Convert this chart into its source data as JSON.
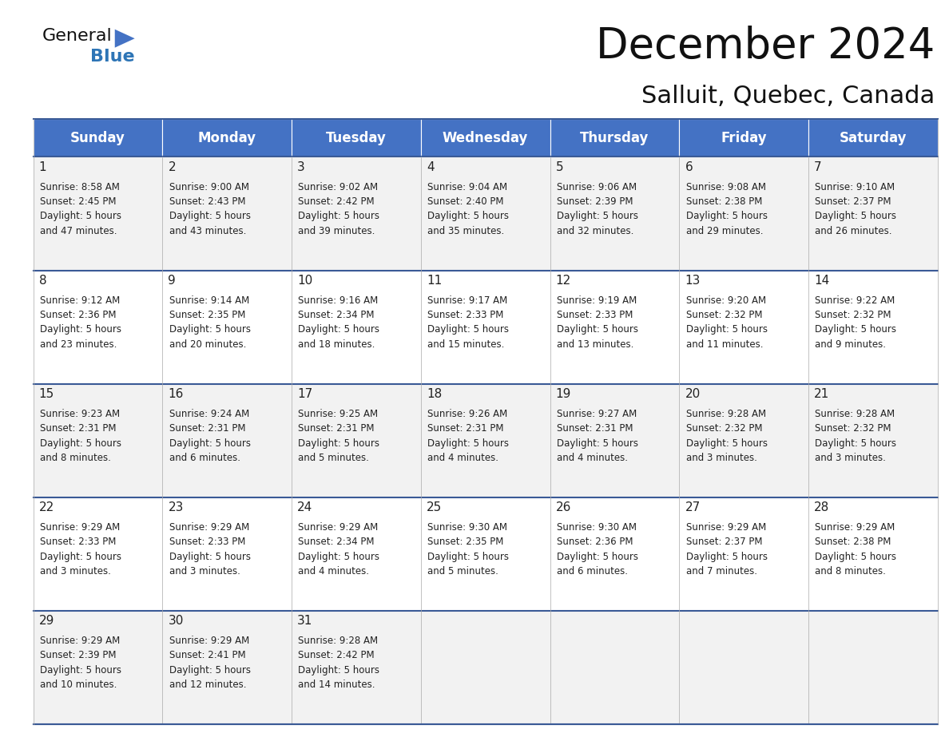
{
  "title": "December 2024",
  "subtitle": "Salluit, Quebec, Canada",
  "header_color": "#4472C4",
  "header_text_color": "#FFFFFF",
  "days_of_week": [
    "Sunday",
    "Monday",
    "Tuesday",
    "Wednesday",
    "Thursday",
    "Friday",
    "Saturday"
  ],
  "weeks": [
    [
      {
        "day": 1,
        "sunrise": "8:58 AM",
        "sunset": "2:45 PM",
        "daylight": "5 hours and 47 minutes."
      },
      {
        "day": 2,
        "sunrise": "9:00 AM",
        "sunset": "2:43 PM",
        "daylight": "5 hours and 43 minutes."
      },
      {
        "day": 3,
        "sunrise": "9:02 AM",
        "sunset": "2:42 PM",
        "daylight": "5 hours and 39 minutes."
      },
      {
        "day": 4,
        "sunrise": "9:04 AM",
        "sunset": "2:40 PM",
        "daylight": "5 hours and 35 minutes."
      },
      {
        "day": 5,
        "sunrise": "9:06 AM",
        "sunset": "2:39 PM",
        "daylight": "5 hours and 32 minutes."
      },
      {
        "day": 6,
        "sunrise": "9:08 AM",
        "sunset": "2:38 PM",
        "daylight": "5 hours and 29 minutes."
      },
      {
        "day": 7,
        "sunrise": "9:10 AM",
        "sunset": "2:37 PM",
        "daylight": "5 hours and 26 minutes."
      }
    ],
    [
      {
        "day": 8,
        "sunrise": "9:12 AM",
        "sunset": "2:36 PM",
        "daylight": "5 hours and 23 minutes."
      },
      {
        "day": 9,
        "sunrise": "9:14 AM",
        "sunset": "2:35 PM",
        "daylight": "5 hours and 20 minutes."
      },
      {
        "day": 10,
        "sunrise": "9:16 AM",
        "sunset": "2:34 PM",
        "daylight": "5 hours and 18 minutes."
      },
      {
        "day": 11,
        "sunrise": "9:17 AM",
        "sunset": "2:33 PM",
        "daylight": "5 hours and 15 minutes."
      },
      {
        "day": 12,
        "sunrise": "9:19 AM",
        "sunset": "2:33 PM",
        "daylight": "5 hours and 13 minutes."
      },
      {
        "day": 13,
        "sunrise": "9:20 AM",
        "sunset": "2:32 PM",
        "daylight": "5 hours and 11 minutes."
      },
      {
        "day": 14,
        "sunrise": "9:22 AM",
        "sunset": "2:32 PM",
        "daylight": "5 hours and 9 minutes."
      }
    ],
    [
      {
        "day": 15,
        "sunrise": "9:23 AM",
        "sunset": "2:31 PM",
        "daylight": "5 hours and 8 minutes."
      },
      {
        "day": 16,
        "sunrise": "9:24 AM",
        "sunset": "2:31 PM",
        "daylight": "5 hours and 6 minutes."
      },
      {
        "day": 17,
        "sunrise": "9:25 AM",
        "sunset": "2:31 PM",
        "daylight": "5 hours and 5 minutes."
      },
      {
        "day": 18,
        "sunrise": "9:26 AM",
        "sunset": "2:31 PM",
        "daylight": "5 hours and 4 minutes."
      },
      {
        "day": 19,
        "sunrise": "9:27 AM",
        "sunset": "2:31 PM",
        "daylight": "5 hours and 4 minutes."
      },
      {
        "day": 20,
        "sunrise": "9:28 AM",
        "sunset": "2:32 PM",
        "daylight": "5 hours and 3 minutes."
      },
      {
        "day": 21,
        "sunrise": "9:28 AM",
        "sunset": "2:32 PM",
        "daylight": "5 hours and 3 minutes."
      }
    ],
    [
      {
        "day": 22,
        "sunrise": "9:29 AM",
        "sunset": "2:33 PM",
        "daylight": "5 hours and 3 minutes."
      },
      {
        "day": 23,
        "sunrise": "9:29 AM",
        "sunset": "2:33 PM",
        "daylight": "5 hours and 3 minutes."
      },
      {
        "day": 24,
        "sunrise": "9:29 AM",
        "sunset": "2:34 PM",
        "daylight": "5 hours and 4 minutes."
      },
      {
        "day": 25,
        "sunrise": "9:30 AM",
        "sunset": "2:35 PM",
        "daylight": "5 hours and 5 minutes."
      },
      {
        "day": 26,
        "sunrise": "9:30 AM",
        "sunset": "2:36 PM",
        "daylight": "5 hours and 6 minutes."
      },
      {
        "day": 27,
        "sunrise": "9:29 AM",
        "sunset": "2:37 PM",
        "daylight": "5 hours and 7 minutes."
      },
      {
        "day": 28,
        "sunrise": "9:29 AM",
        "sunset": "2:38 PM",
        "daylight": "5 hours and 8 minutes."
      }
    ],
    [
      {
        "day": 29,
        "sunrise": "9:29 AM",
        "sunset": "2:39 PM",
        "daylight": "5 hours and 10 minutes."
      },
      {
        "day": 30,
        "sunrise": "9:29 AM",
        "sunset": "2:41 PM",
        "daylight": "5 hours and 12 minutes."
      },
      {
        "day": 31,
        "sunrise": "9:28 AM",
        "sunset": "2:42 PM",
        "daylight": "5 hours and 14 minutes."
      },
      null,
      null,
      null,
      null
    ]
  ],
  "bg_color_odd": "#f2f2f2",
  "bg_color_even": "#ffffff",
  "row_line_color": "#3a5a96",
  "title_fontsize": 38,
  "subtitle_fontsize": 22,
  "header_fontsize": 12,
  "day_num_fontsize": 11,
  "cell_fontsize": 8.5,
  "logo_general_fontsize": 16,
  "logo_blue_fontsize": 16,
  "logo_tri_color": "#4472C4",
  "logo_blue_color": "#2e75b6"
}
